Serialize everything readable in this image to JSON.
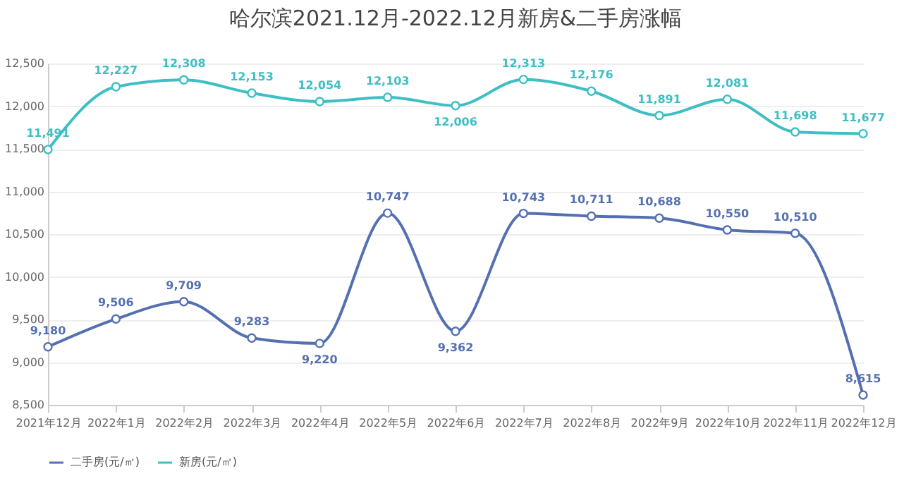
{
  "chart_data": {
    "type": "line",
    "title": "哈尔滨2021.12月-2022.12月新房&二手房涨幅",
    "categories": [
      "2021年12月",
      "2022年1月",
      "2022年2月",
      "2022年3月",
      "2022年4月",
      "2022年5月",
      "2022年6月",
      "2022年7月",
      "2022年8月",
      "2022年9月",
      "2022年10月",
      "2022年11月",
      "2022年12月"
    ],
    "series": [
      {
        "name": "二手房(元/㎡)",
        "color": "#5470b0",
        "values": [
          9180,
          9506,
          9709,
          9283,
          9220,
          10747,
          9362,
          10743,
          10711,
          10688,
          10550,
          10510,
          8615
        ],
        "value_labels": [
          "9,180",
          "9,506",
          "9,709",
          "9,283",
          "9,220",
          "10,747",
          "9,362",
          "10,743",
          "10,711",
          "10,688",
          "10,550",
          "10,510",
          "8,615"
        ]
      },
      {
        "name": "新房(元/㎡)",
        "color": "#3dbfc4",
        "values": [
          11491,
          12227,
          12308,
          12153,
          12054,
          12103,
          12006,
          12313,
          12176,
          11891,
          12081,
          11698,
          11677
        ],
        "value_labels": [
          "11,491",
          "12,227",
          "12,308",
          "12,153",
          "12,054",
          "12,103",
          "12,006",
          "12,313",
          "12,176",
          "11,891",
          "12,081",
          "11,698",
          "11,677"
        ]
      }
    ],
    "ylim": [
      8500,
      12500
    ],
    "yticks": [
      {
        "value": 8500,
        "label": "8,500"
      },
      {
        "value": 9000,
        "label": "9,000"
      },
      {
        "value": 9500,
        "label": "9,500"
      },
      {
        "value": 10000,
        "label": "10,000"
      },
      {
        "value": 10500,
        "label": "10,500"
      },
      {
        "value": 11000,
        "label": "11,000"
      },
      {
        "value": 11500,
        "label": "11,500"
      },
      {
        "value": 12000,
        "label": "12,000"
      },
      {
        "value": 12500,
        "label": "12,500"
      }
    ],
    "grid": "y",
    "legend": "bottom",
    "marker": "circle",
    "line_style": "solid"
  }
}
